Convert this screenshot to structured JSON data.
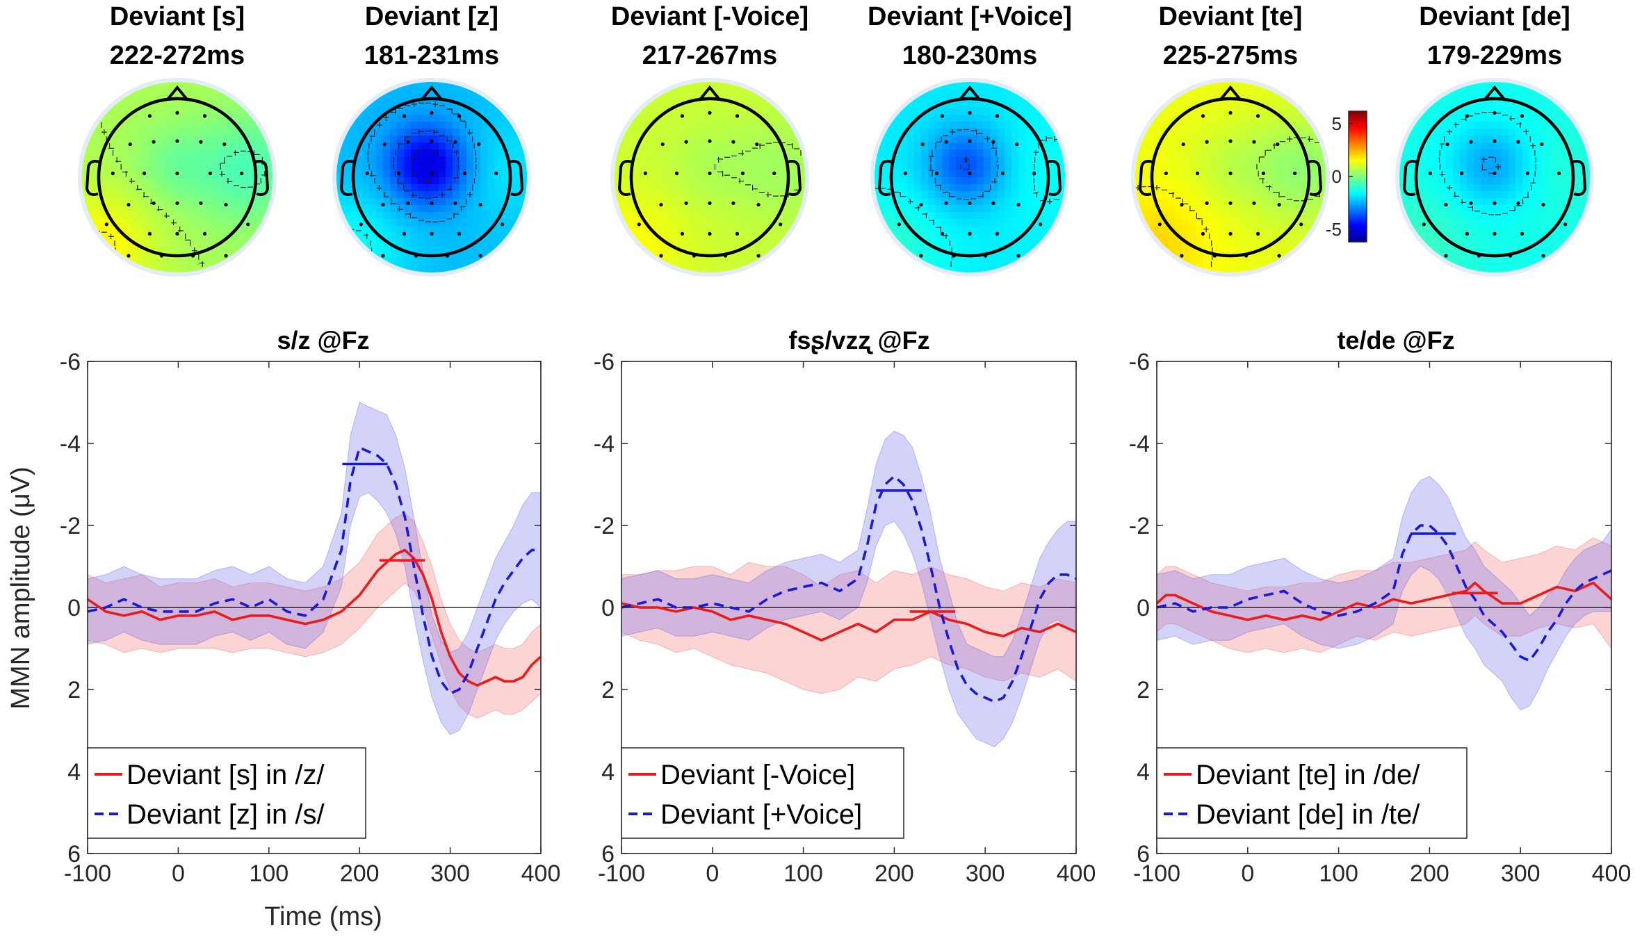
{
  "topomaps": [
    {
      "title": "Deviant [s]",
      "window": "222-272ms",
      "color": "#f01414",
      "field": {
        "baseline": 0.5,
        "center": -0.1,
        "bottom_left": 1.6,
        "right": -0.6
      }
    },
    {
      "title": "Deviant [z]",
      "window": "181-231ms",
      "color": "#1414dc",
      "field": {
        "baseline": -2.3,
        "center": -5.0,
        "bottom_left": -1.4,
        "right": -1.8
      }
    },
    {
      "title": "Deviant [-Voice]",
      "window": "217-267ms",
      "color": "#f01414",
      "field": {
        "baseline": 0.9,
        "center": 0.6,
        "bottom_left": 1.5,
        "right": 0.4
      }
    },
    {
      "title": "Deviant [+Voice]",
      "window": "180-230ms",
      "color": "#1414dc",
      "field": {
        "baseline": -1.7,
        "center": -3.6,
        "bottom_left": -1.0,
        "right": -1.4
      }
    },
    {
      "title": "Deviant [te]",
      "window": "225-275ms",
      "color": "#f01414",
      "field": {
        "baseline": 1.3,
        "center": 0.9,
        "bottom_left": 2.0,
        "right": 0.2
      }
    },
    {
      "title": "Deviant [de]",
      "window": "179-229ms",
      "color": "#1414dc",
      "field": {
        "baseline": -1.3,
        "center": -2.6,
        "bottom_left": -0.8,
        "right": -1.1
      }
    }
  ],
  "colorbar": {
    "ticks": [
      "5",
      "0",
      "-5"
    ],
    "range": [
      -6,
      6
    ]
  },
  "chart_data": [
    {
      "type": "line",
      "title": "s/z @Fz",
      "xlabel": "Time (ms)",
      "ylabel": "MMN amplitude (μV)",
      "xlim": [
        -100,
        400
      ],
      "ylim": [
        -6,
        6
      ],
      "y_reversed": true,
      "xticks": [
        "-100",
        "0",
        "100",
        "200",
        "300",
        "400"
      ],
      "yticks": [
        "-6",
        "-4",
        "-2",
        "0",
        "2",
        "4",
        "6"
      ],
      "series": [
        {
          "name": "Deviant [s] in /z/",
          "color": "#e81c1c",
          "dash": "solid",
          "x": [
            -100,
            -80,
            -60,
            -40,
            -20,
            0,
            20,
            40,
            60,
            80,
            100,
            120,
            140,
            160,
            180,
            200,
            220,
            240,
            250,
            260,
            270,
            280,
            290,
            300,
            310,
            320,
            330,
            340,
            350,
            360,
            370,
            380,
            390,
            400
          ],
          "y": [
            -0.2,
            0.1,
            0.2,
            0.1,
            0.3,
            0.2,
            0.2,
            0.1,
            0.3,
            0.2,
            0.2,
            0.3,
            0.4,
            0.3,
            0.1,
            -0.3,
            -0.9,
            -1.3,
            -1.4,
            -1.2,
            -0.8,
            -0.2,
            0.6,
            1.2,
            1.6,
            1.8,
            1.9,
            1.8,
            1.7,
            1.8,
            1.8,
            1.7,
            1.4,
            1.2
          ],
          "band_upper": [
            0.8,
            0.9,
            1.1,
            1.0,
            1.1,
            1.0,
            1.0,
            1.0,
            1.1,
            1.0,
            1.0,
            1.1,
            1.2,
            1.1,
            0.9,
            0.5,
            0.0,
            -0.4,
            -0.6,
            -0.4,
            0.0,
            0.7,
            1.4,
            2.0,
            2.4,
            2.6,
            2.7,
            2.6,
            2.5,
            2.6,
            2.6,
            2.5,
            2.3,
            2.1
          ],
          "band_lower": [
            -0.8,
            -0.6,
            -0.7,
            -0.8,
            -0.5,
            -0.6,
            -0.6,
            -0.7,
            -0.5,
            -0.6,
            -0.6,
            -0.5,
            -0.4,
            -0.5,
            -0.7,
            -1.1,
            -1.8,
            -2.2,
            -2.3,
            -2.1,
            -1.6,
            -1.0,
            -0.2,
            0.4,
            0.8,
            1.0,
            1.1,
            1.0,
            0.9,
            1.0,
            1.0,
            0.9,
            0.6,
            0.4
          ],
          "marker": {
            "x0": 222,
            "x1": 272,
            "y": -1.15
          }
        },
        {
          "name": "Deviant [z] in /s/",
          "color": "#1a1ad6",
          "dash": "dashed",
          "x": [
            -100,
            -80,
            -60,
            -40,
            -20,
            0,
            20,
            40,
            60,
            80,
            100,
            120,
            140,
            160,
            180,
            190,
            200,
            210,
            220,
            230,
            240,
            250,
            260,
            270,
            280,
            290,
            300,
            310,
            320,
            330,
            340,
            350,
            360,
            370,
            380,
            390,
            400
          ],
          "y": [
            0.1,
            0.0,
            -0.2,
            0.0,
            0.1,
            0.1,
            0.1,
            -0.1,
            -0.2,
            0.0,
            -0.2,
            0.1,
            0.2,
            -0.2,
            -1.4,
            -3.1,
            -3.9,
            -3.8,
            -3.7,
            -3.5,
            -3.0,
            -2.2,
            -1.0,
            0.2,
            1.2,
            1.8,
            2.1,
            2.0,
            1.6,
            1.0,
            0.4,
            -0.2,
            -0.6,
            -0.9,
            -1.2,
            -1.4,
            -1.4
          ],
          "band_upper": [
            0.9,
            0.8,
            0.6,
            0.8,
            0.9,
            0.9,
            0.9,
            0.7,
            0.6,
            0.8,
            0.6,
            0.9,
            1.0,
            0.6,
            -0.5,
            -2.0,
            -2.7,
            -2.8,
            -2.6,
            -2.3,
            -1.8,
            -1.0,
            0.2,
            1.3,
            2.2,
            2.8,
            3.1,
            3.0,
            2.6,
            2.0,
            1.4,
            0.8,
            0.4,
            0.1,
            -0.1,
            -0.2,
            0.0
          ],
          "band_lower": [
            -0.7,
            -0.8,
            -1.0,
            -0.8,
            -0.7,
            -0.7,
            -0.7,
            -0.9,
            -1.0,
            -0.8,
            -1.0,
            -0.7,
            -0.6,
            -1.0,
            -2.3,
            -4.2,
            -5.0,
            -4.9,
            -4.8,
            -4.7,
            -4.2,
            -3.4,
            -2.2,
            -0.9,
            0.2,
            0.8,
            1.1,
            1.0,
            0.6,
            0.0,
            -0.6,
            -1.2,
            -1.6,
            -2.0,
            -2.5,
            -2.8,
            -2.8
          ],
          "marker": {
            "x0": 181,
            "x1": 231,
            "y": -3.5
          }
        }
      ]
    },
    {
      "type": "line",
      "title": "fsʂ/vzʐ @Fz",
      "xlabel": "",
      "ylabel": "",
      "xlim": [
        -100,
        400
      ],
      "ylim": [
        -6,
        6
      ],
      "y_reversed": true,
      "xticks": [
        "-100",
        "0",
        "100",
        "200",
        "300",
        "400"
      ],
      "yticks": [
        "-6",
        "-4",
        "-2",
        "0",
        "2",
        "4",
        "6"
      ],
      "series": [
        {
          "name": "Deviant [-Voice]",
          "color": "#e81c1c",
          "dash": "solid",
          "x": [
            -100,
            -80,
            -60,
            -40,
            -20,
            0,
            20,
            40,
            60,
            80,
            100,
            120,
            140,
            160,
            180,
            200,
            220,
            240,
            260,
            280,
            300,
            320,
            340,
            360,
            380,
            400
          ],
          "y": [
            -0.1,
            0.0,
            0.0,
            0.1,
            0.0,
            0.1,
            0.3,
            0.2,
            0.3,
            0.4,
            0.6,
            0.8,
            0.6,
            0.4,
            0.6,
            0.3,
            0.3,
            0.1,
            0.3,
            0.4,
            0.6,
            0.7,
            0.5,
            0.6,
            0.4,
            0.6
          ],
          "band_upper": [
            0.6,
            0.8,
            0.9,
            1.1,
            1.0,
            1.2,
            1.4,
            1.5,
            1.6,
            1.8,
            2.0,
            2.1,
            2.0,
            1.7,
            1.8,
            1.5,
            1.4,
            1.2,
            1.4,
            1.5,
            1.7,
            1.8,
            1.6,
            1.7,
            1.5,
            1.8
          ],
          "band_lower": [
            -0.8,
            -0.8,
            -0.9,
            -0.9,
            -1.0,
            -1.0,
            -0.8,
            -1.1,
            -1.0,
            -1.0,
            -0.8,
            -0.5,
            -0.8,
            -0.9,
            -0.6,
            -0.9,
            -0.8,
            -1.0,
            -0.8,
            -0.7,
            -0.5,
            -0.4,
            -0.6,
            -0.5,
            -0.7,
            -0.6
          ],
          "marker": {
            "x0": 217,
            "x1": 267,
            "y": 0.1
          }
        },
        {
          "name": "Deviant [+Voice]",
          "color": "#1a1ad6",
          "dash": "dashed",
          "x": [
            -100,
            -80,
            -60,
            -40,
            -20,
            0,
            20,
            40,
            60,
            80,
            100,
            120,
            140,
            160,
            170,
            180,
            190,
            200,
            210,
            220,
            230,
            240,
            250,
            260,
            270,
            280,
            290,
            300,
            310,
            320,
            330,
            340,
            350,
            360,
            370,
            380,
            390,
            400
          ],
          "y": [
            0.0,
            -0.1,
            -0.2,
            0.0,
            0.0,
            -0.1,
            0.0,
            0.1,
            -0.2,
            -0.4,
            -0.5,
            -0.6,
            -0.4,
            -0.7,
            -1.5,
            -2.5,
            -3.0,
            -3.2,
            -3.0,
            -2.6,
            -1.9,
            -1.0,
            0.0,
            0.8,
            1.5,
            1.9,
            2.1,
            2.2,
            2.3,
            2.2,
            1.8,
            1.2,
            0.5,
            -0.2,
            -0.6,
            -0.8,
            -0.8,
            -0.7
          ],
          "band_upper": [
            0.7,
            0.6,
            0.5,
            0.7,
            0.7,
            0.6,
            0.7,
            0.8,
            0.5,
            0.3,
            0.2,
            0.1,
            0.3,
            0.0,
            -0.6,
            -1.5,
            -2.0,
            -2.1,
            -1.8,
            -1.3,
            -0.6,
            0.3,
            1.2,
            2.0,
            2.6,
            2.9,
            3.2,
            3.3,
            3.4,
            3.2,
            2.8,
            2.2,
            1.5,
            0.8,
            0.4,
            0.3,
            0.5,
            0.6
          ],
          "band_lower": [
            -0.7,
            -0.8,
            -0.9,
            -0.7,
            -0.7,
            -0.8,
            -0.7,
            -0.6,
            -0.9,
            -1.1,
            -1.2,
            -1.3,
            -1.1,
            -1.4,
            -2.4,
            -3.5,
            -4.1,
            -4.3,
            -4.2,
            -3.9,
            -3.2,
            -2.3,
            -1.2,
            -0.4,
            0.4,
            0.9,
            1.0,
            1.1,
            1.2,
            1.2,
            0.8,
            0.2,
            -0.5,
            -1.2,
            -1.6,
            -1.9,
            -2.1,
            -2.1
          ],
          "marker": {
            "x0": 180,
            "x1": 230,
            "y": -2.85
          }
        }
      ]
    },
    {
      "type": "line",
      "title": "te/de @Fz",
      "xlabel": "",
      "ylabel": "",
      "xlim": [
        -100,
        400
      ],
      "ylim": [
        -6,
        6
      ],
      "y_reversed": true,
      "xticks": [
        "-100",
        "0",
        "100",
        "200",
        "300",
        "400"
      ],
      "yticks": [
        "-6",
        "-4",
        "-2",
        "0",
        "2",
        "4",
        "6"
      ],
      "series": [
        {
          "name": "Deviant [te] in /de/",
          "color": "#e81c1c",
          "dash": "solid",
          "x": [
            -100,
            -90,
            -80,
            -60,
            -40,
            -20,
            0,
            20,
            40,
            60,
            80,
            100,
            120,
            140,
            160,
            180,
            200,
            220,
            240,
            250,
            260,
            280,
            300,
            320,
            340,
            360,
            380,
            400
          ],
          "y": [
            -0.1,
            -0.3,
            -0.3,
            -0.1,
            0.1,
            0.2,
            0.3,
            0.2,
            0.3,
            0.2,
            0.3,
            0.1,
            -0.1,
            0.0,
            -0.2,
            -0.1,
            -0.2,
            -0.3,
            -0.4,
            -0.6,
            -0.4,
            -0.1,
            -0.1,
            -0.3,
            -0.5,
            -0.4,
            -0.6,
            -0.2
          ],
          "band_upper": [
            0.6,
            0.4,
            0.4,
            0.6,
            0.8,
            1.0,
            1.1,
            1.0,
            1.1,
            1.0,
            1.1,
            0.9,
            0.7,
            0.8,
            0.6,
            0.7,
            0.6,
            0.5,
            0.4,
            0.2,
            0.4,
            0.7,
            0.7,
            0.5,
            0.4,
            0.5,
            0.4,
            1.0
          ],
          "band_lower": [
            -0.8,
            -1.0,
            -1.0,
            -0.8,
            -0.6,
            -0.5,
            -0.4,
            -0.5,
            -0.5,
            -0.6,
            -0.6,
            -0.8,
            -0.9,
            -0.9,
            -1.1,
            -1.1,
            -1.2,
            -1.3,
            -1.4,
            -1.6,
            -1.4,
            -1.1,
            -1.2,
            -1.3,
            -1.5,
            -1.4,
            -1.7,
            -1.5
          ],
          "marker": {
            "x0": 225,
            "x1": 275,
            "y": -0.35
          }
        },
        {
          "name": "Deviant [de] in /te/",
          "color": "#1a1ad6",
          "dash": "dashed",
          "x": [
            -100,
            -80,
            -60,
            -40,
            -20,
            0,
            20,
            40,
            60,
            80,
            100,
            120,
            140,
            160,
            170,
            180,
            190,
            200,
            210,
            220,
            230,
            240,
            250,
            260,
            270,
            280,
            290,
            300,
            310,
            320,
            330,
            340,
            350,
            360,
            370,
            380,
            390,
            400
          ],
          "y": [
            0.0,
            -0.1,
            0.1,
            0.0,
            0.0,
            -0.2,
            -0.3,
            -0.4,
            -0.1,
            0.1,
            0.2,
            0.1,
            -0.1,
            -0.4,
            -1.3,
            -1.8,
            -2.0,
            -2.0,
            -1.8,
            -1.5,
            -1.0,
            -0.5,
            -0.2,
            0.2,
            0.4,
            0.6,
            0.9,
            1.2,
            1.3,
            1.0,
            0.6,
            0.3,
            -0.1,
            -0.4,
            -0.6,
            -0.7,
            -0.8,
            -0.9
          ],
          "band_upper": [
            0.8,
            0.7,
            0.9,
            0.8,
            0.8,
            0.6,
            0.5,
            0.4,
            0.7,
            0.9,
            1.0,
            0.9,
            0.7,
            0.4,
            -0.4,
            -0.8,
            -1.0,
            -0.9,
            -0.7,
            -0.3,
            0.2,
            0.7,
            1.0,
            1.4,
            1.6,
            1.8,
            2.2,
            2.5,
            2.4,
            2.0,
            1.5,
            1.1,
            0.7,
            0.4,
            0.2,
            0.1,
            0.1,
            0.1
          ],
          "band_lower": [
            -0.8,
            -0.9,
            -0.7,
            -0.8,
            -0.8,
            -1.0,
            -1.1,
            -1.2,
            -0.9,
            -0.7,
            -0.6,
            -0.7,
            -0.9,
            -1.2,
            -2.2,
            -2.8,
            -3.1,
            -3.2,
            -3.0,
            -2.7,
            -2.2,
            -1.7,
            -1.4,
            -1.0,
            -0.8,
            -0.6,
            -0.4,
            -0.1,
            0.2,
            0.0,
            -0.3,
            -0.5,
            -0.9,
            -1.2,
            -1.4,
            -1.5,
            -1.6,
            -1.9
          ],
          "marker": {
            "x0": 179,
            "x1": 229,
            "y": -1.8
          }
        }
      ]
    }
  ]
}
